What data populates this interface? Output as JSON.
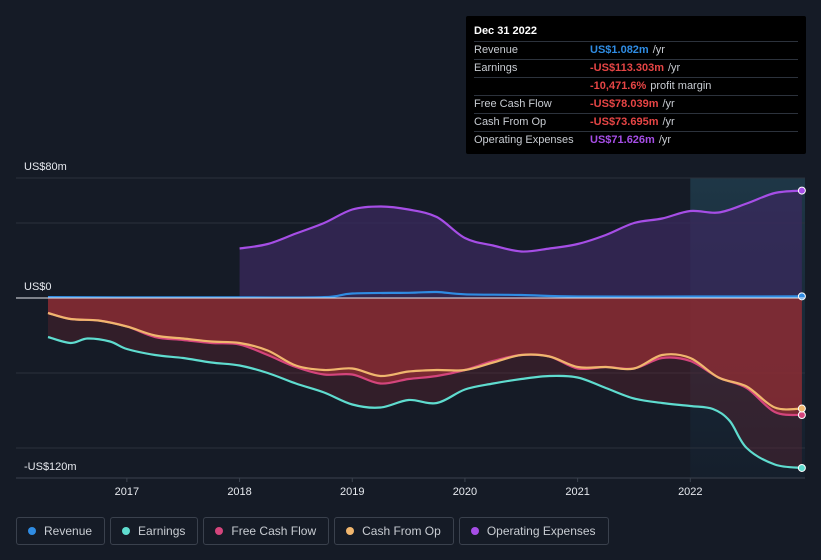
{
  "colors": {
    "background": "#151b26",
    "revenue": "#2f8ce3",
    "earnings": "#5fdccf",
    "free_cash_flow": "#d4457c",
    "cash_from_op": "#f0b66e",
    "operating_expenses": "#a64ee6",
    "negative_fill": "#a83237",
    "positive_fill": "#3a2a5e"
  },
  "tooltip": {
    "date": "Dec 31 2022",
    "rows": [
      {
        "label": "Revenue",
        "value": "US$1.082m",
        "unit": "/yr",
        "color": "#2f8ce3"
      },
      {
        "label": "Earnings",
        "value": "-US$113.303m",
        "unit": "/yr",
        "color": "#e64545"
      },
      {
        "label": "",
        "value": "-10,471.6%",
        "unit": "profit margin",
        "color": "#e64545"
      },
      {
        "label": "Free Cash Flow",
        "value": "-US$78.039m",
        "unit": "/yr",
        "color": "#e64545"
      },
      {
        "label": "Cash From Op",
        "value": "-US$73.695m",
        "unit": "/yr",
        "color": "#e64545"
      },
      {
        "label": "Operating Expenses",
        "value": "US$71.626m",
        "unit": "/yr",
        "color": "#a64ee6"
      }
    ]
  },
  "legend": [
    {
      "key": "revenue",
      "label": "Revenue",
      "color": "#2f8ce3"
    },
    {
      "key": "earnings",
      "label": "Earnings",
      "color": "#5fdccf"
    },
    {
      "key": "free_cash_flow",
      "label": "Free Cash Flow",
      "color": "#d4457c"
    },
    {
      "key": "cash_from_op",
      "label": "Cash From Op",
      "color": "#f0b66e"
    },
    {
      "key": "operating_expenses",
      "label": "Operating Expenses",
      "color": "#a64ee6"
    }
  ],
  "chart_data": {
    "type": "line",
    "title": "",
    "xlabel": "",
    "ylabel": "",
    "y_axis_labels": {
      "top": "US$80m",
      "zero": "US$0",
      "bottom": "-US$120m"
    },
    "ylim": [
      -120,
      80
    ],
    "xlim": [
      2016.3,
      2023.0
    ],
    "x_ticks": [
      2017,
      2018,
      2019,
      2020,
      2021,
      2022
    ],
    "x_tick_labels": [
      "2017",
      "2018",
      "2019",
      "2020",
      "2021",
      "2022"
    ],
    "forecast_start": 2022.0,
    "gridlines": [
      80,
      50,
      0,
      -50,
      -100
    ],
    "series": [
      {
        "key": "operating_expenses",
        "name": "Operating Expenses",
        "x": [
          2018.0,
          2018.25,
          2018.5,
          2018.75,
          2019.0,
          2019.25,
          2019.5,
          2019.75,
          2020.0,
          2020.25,
          2020.5,
          2020.75,
          2021.0,
          2021.25,
          2021.5,
          2021.75,
          2022.0,
          2022.25,
          2022.5,
          2022.75,
          2022.99
        ],
        "values": [
          33,
          36,
          43,
          50,
          59,
          61,
          59,
          54,
          40,
          35,
          31,
          33,
          36,
          42,
          50,
          53,
          58,
          57,
          63,
          70,
          71.6
        ]
      },
      {
        "key": "revenue",
        "name": "Revenue",
        "x": [
          2016.3,
          2017.0,
          2018.0,
          2018.75,
          2019.0,
          2019.5,
          2019.75,
          2020.0,
          2020.5,
          2021.0,
          2022.0,
          2022.99
        ],
        "values": [
          0.6,
          0.4,
          0.4,
          0.6,
          3,
          3.5,
          4,
          2.5,
          2,
          1,
          1,
          1.1
        ]
      },
      {
        "key": "earnings",
        "name": "Earnings",
        "x": [
          2016.3,
          2016.5,
          2016.65,
          2016.85,
          2017.0,
          2017.25,
          2017.5,
          2017.75,
          2018.0,
          2018.25,
          2018.5,
          2018.75,
          2019.0,
          2019.25,
          2019.5,
          2019.75,
          2020.0,
          2020.25,
          2020.5,
          2020.75,
          2021.0,
          2021.25,
          2021.5,
          2021.75,
          2022.0,
          2022.2,
          2022.35,
          2022.5,
          2022.75,
          2022.99
        ],
        "values": [
          -26,
          -30,
          -27,
          -29,
          -34,
          -38,
          -40,
          -43,
          -45,
          -50,
          -57,
          -63,
          -71,
          -73,
          -68,
          -70,
          -61,
          -57,
          -54,
          -52,
          -53,
          -60,
          -67,
          -70,
          -72,
          -74,
          -82,
          -100,
          -111,
          -113.3
        ]
      },
      {
        "key": "free_cash_flow",
        "name": "Free Cash Flow",
        "x": [
          2016.3,
          2016.5,
          2016.75,
          2017.0,
          2017.25,
          2017.5,
          2017.75,
          2018.0,
          2018.25,
          2018.5,
          2018.75,
          2019.0,
          2019.25,
          2019.5,
          2019.75,
          2020.0,
          2020.25,
          2020.5,
          2020.75,
          2021.0,
          2021.25,
          2021.5,
          2021.75,
          2022.0,
          2022.25,
          2022.5,
          2022.75,
          2022.99
        ],
        "values": [
          -10,
          -14,
          -15,
          -19,
          -26,
          -28,
          -30,
          -31,
          -38,
          -46,
          -51,
          -51,
          -57,
          -54,
          -52,
          -48,
          -42,
          -38,
          -39,
          -47,
          -46,
          -47,
          -40,
          -42,
          -53,
          -60,
          -76,
          -78
        ]
      },
      {
        "key": "cash_from_op",
        "name": "Cash From Op",
        "x": [
          2016.3,
          2016.5,
          2016.75,
          2017.0,
          2017.25,
          2017.5,
          2017.75,
          2018.0,
          2018.25,
          2018.5,
          2018.75,
          2019.0,
          2019.25,
          2019.5,
          2019.75,
          2020.0,
          2020.25,
          2020.5,
          2020.75,
          2021.0,
          2021.25,
          2021.5,
          2021.75,
          2022.0,
          2022.25,
          2022.5,
          2022.75,
          2022.99
        ],
        "values": [
          -10,
          -14,
          -15,
          -19,
          -25,
          -27,
          -29,
          -30,
          -35,
          -45,
          -48,
          -47,
          -52,
          -49,
          -48,
          -48,
          -43,
          -38,
          -39,
          -46,
          -46,
          -47,
          -38,
          -40,
          -53,
          -59,
          -73,
          -73.7
        ]
      }
    ]
  }
}
